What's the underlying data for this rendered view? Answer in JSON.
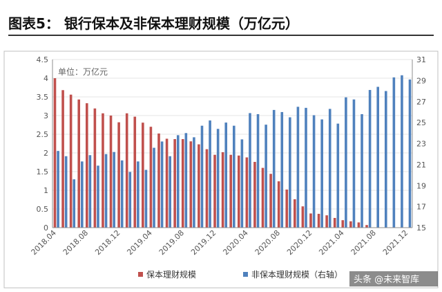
{
  "title": "图表5： 银行保本及非保本理财规模（万亿元）",
  "unit_label": "单位：万亿元",
  "watermark": "头条 @未来智库",
  "colors": {
    "red": "#c0504d",
    "blue": "#4f81bd"
  },
  "chart_data": {
    "type": "bar",
    "left_axis": {
      "min": 0,
      "max": 4.5,
      "ticks": [
        "0",
        "0.5",
        "1",
        "1.5",
        "2",
        "2.5",
        "3",
        "3.5",
        "4",
        "4.5"
      ]
    },
    "right_axis": {
      "min": 15,
      "max": 31,
      "ticks": [
        "15",
        "17",
        "19",
        "21",
        "23",
        "25",
        "27",
        "29",
        "31"
      ]
    },
    "x_tick_labels": [
      "2018.04",
      "2018.08",
      "2018.12",
      "2019.04",
      "2019.08",
      "2019.12",
      "2020.04",
      "2020.08",
      "2020.12",
      "2021.04",
      "2021.08",
      "2021.12"
    ],
    "categories": [
      "2018.04",
      "2018.05",
      "2018.06",
      "2018.07",
      "2018.08",
      "2018.09",
      "2018.10",
      "2018.11",
      "2018.12",
      "2019.01",
      "2019.02",
      "2019.03",
      "2019.04",
      "2019.05",
      "2019.06",
      "2019.07",
      "2019.08",
      "2019.09",
      "2019.10",
      "2019.11",
      "2019.12",
      "2020.01",
      "2020.02",
      "2020.03",
      "2020.04",
      "2020.05",
      "2020.06",
      "2020.07",
      "2020.08",
      "2020.09",
      "2020.10",
      "2020.11",
      "2020.12",
      "2021.01",
      "2021.02",
      "2021.03",
      "2021.04",
      "2021.05",
      "2021.06",
      "2021.07",
      "2021.08",
      "2021.09",
      "2021.10",
      "2021.11",
      "2021.12"
    ],
    "series": [
      {
        "name": "保本理财规模",
        "axis": "left",
        "color": "#c0504d",
        "values": [
          4.0,
          3.68,
          3.56,
          3.43,
          3.33,
          3.19,
          3.06,
          3.0,
          2.82,
          3.06,
          2.97,
          2.81,
          2.7,
          2.52,
          2.38,
          2.37,
          2.37,
          2.31,
          2.23,
          2.1,
          1.95,
          2.02,
          1.95,
          1.93,
          1.88,
          1.76,
          1.6,
          1.44,
          1.24,
          1.02,
          0.76,
          0.57,
          0.38,
          0.37,
          0.33,
          0.26,
          0.2,
          0.17,
          0.14,
          0.07,
          null,
          null,
          null,
          null,
          null
        ]
      },
      {
        "name": "非保本理财规模（右轴）",
        "axis": "right",
        "color": "#4f81bd",
        "values": [
          22.3,
          21.8,
          19.6,
          21.3,
          21.9,
          20.9,
          22.0,
          22.2,
          21.4,
          20.3,
          21.3,
          20.5,
          22.6,
          23.2,
          21.8,
          23.8,
          24.0,
          23.6,
          24.7,
          25.2,
          24.4,
          25.0,
          24.7,
          23.4,
          25.9,
          25.8,
          24.8,
          26.2,
          26.0,
          25.5,
          26.5,
          26.4,
          25.7,
          25.3,
          26.3,
          24.9,
          27.4,
          27.2,
          25.8,
          28.1,
          28.4,
          28.0,
          29.3,
          29.5,
          29.1
        ]
      }
    ]
  },
  "legend": [
    {
      "label": "保本理财规模",
      "color": "#c0504d"
    },
    {
      "label": "非保本理财规模（右轴）",
      "color": "#4f81bd"
    }
  ]
}
